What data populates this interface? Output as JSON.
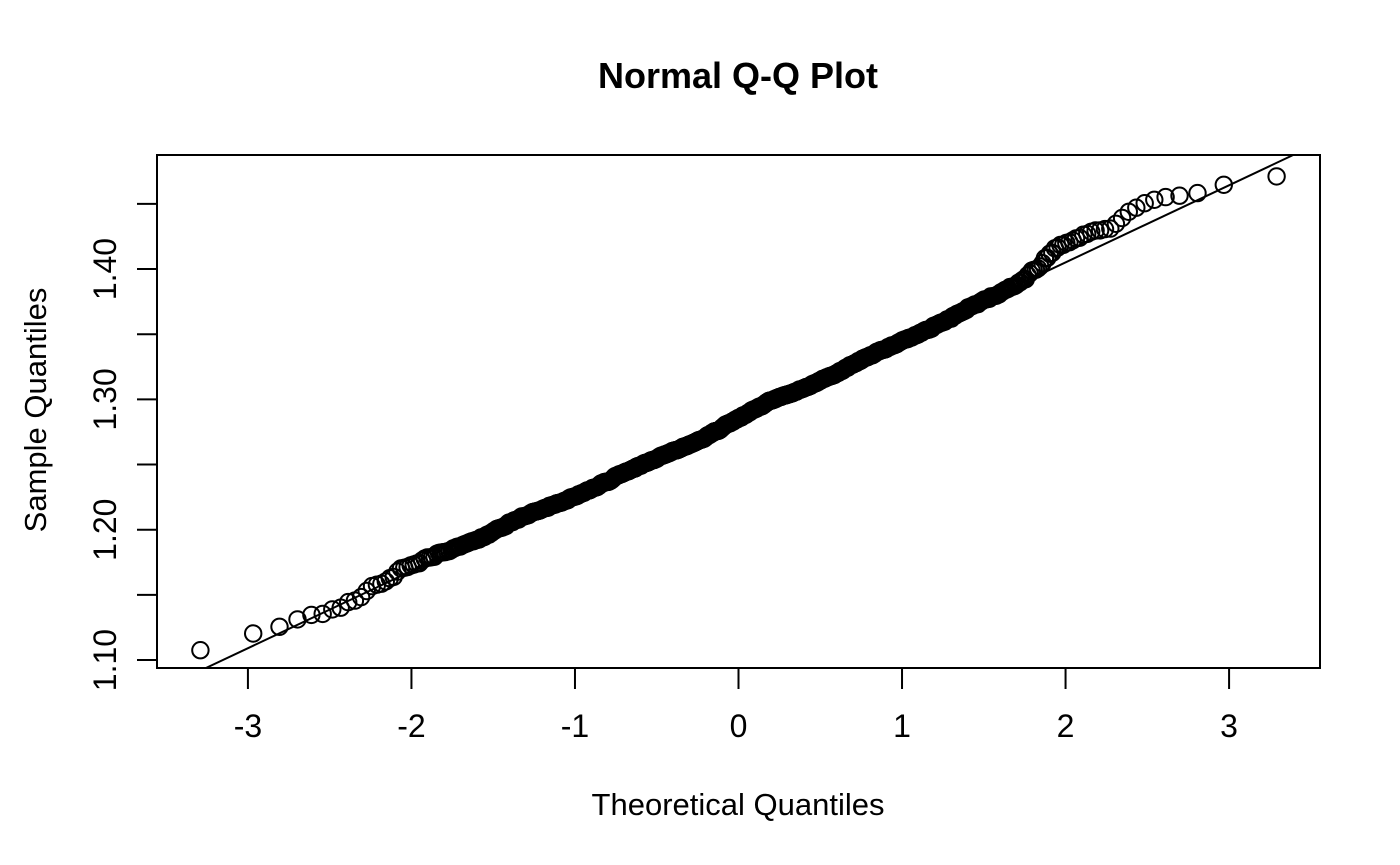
{
  "chart_data": {
    "type": "scatter",
    "subtype": "normal-qq-plot",
    "title": "Normal Q-Q Plot",
    "xlabel": "Theoretical Quantiles",
    "ylabel": "Sample Quantiles",
    "grid": false,
    "legend": "none",
    "x_ticks": [
      {
        "value": -3,
        "label": "-3"
      },
      {
        "value": -2,
        "label": "-2"
      },
      {
        "value": -1,
        "label": "-1"
      },
      {
        "value": 0,
        "label": "0"
      },
      {
        "value": 1,
        "label": "1"
      },
      {
        "value": 2,
        "label": "2"
      },
      {
        "value": 3,
        "label": "3"
      }
    ],
    "y_tick_marks": [
      1.1,
      1.15,
      1.2,
      1.25,
      1.3,
      1.35,
      1.4,
      1.45
    ],
    "y_tick_labels": [
      {
        "value": 1.1,
        "label": "1.10"
      },
      {
        "value": 1.2,
        "label": "1.20"
      },
      {
        "value": 1.3,
        "label": "1.30"
      },
      {
        "value": 1.4,
        "label": "1.40"
      }
    ],
    "xlim": [
      -3.556,
      3.556
    ],
    "ylim": [
      1.0939,
      1.4875
    ],
    "n_points": 1000,
    "sample_summary": {
      "min": 1.107,
      "q1": 1.247,
      "median": 1.287,
      "q3": 1.327,
      "max": 1.47
    },
    "theoretical_range": [
      -3.29,
      3.29
    ],
    "reference_line": {
      "intercept": 1.2867,
      "slope": 0.0592
    },
    "deviation_anchors": [
      [
        -3.3,
        0.015
      ],
      [
        -2.95,
        0.01
      ],
      [
        -2.7,
        0.002
      ],
      [
        -2.4,
        -0.001
      ],
      [
        -2.05,
        0.004
      ],
      [
        -1.6,
        0.0015
      ],
      [
        -1.2,
        -0.0005
      ],
      [
        -0.6,
        -0.0025
      ],
      [
        -0.2,
        -0.003
      ],
      [
        0.2,
        0.0
      ],
      [
        0.6,
        -0.002
      ],
      [
        1.0,
        -0.001
      ],
      [
        1.4,
        -0.0005
      ],
      [
        1.7,
        0.0005
      ],
      [
        1.85,
        0.008
      ],
      [
        1.95,
        0.0155
      ],
      [
        2.1,
        0.014
      ],
      [
        2.28,
        0.01
      ],
      [
        2.43,
        0.0175
      ],
      [
        2.57,
        0.016
      ],
      [
        2.7,
        0.01
      ],
      [
        2.82,
        0.0045
      ],
      [
        2.97,
        0.003
      ],
      [
        3.1,
        -0.002
      ],
      [
        3.29,
        -0.01
      ]
    ],
    "noise_amplitude": 0.0023,
    "seed": 20,
    "point_style": {
      "marker": "open-circle",
      "radius_px": 8.2,
      "stroke_px": 2,
      "color": "#000000"
    },
    "line_style": {
      "stroke_px": 2,
      "color": "#000000"
    },
    "colors": {
      "foreground": "#000000",
      "background": "#ffffff"
    }
  }
}
